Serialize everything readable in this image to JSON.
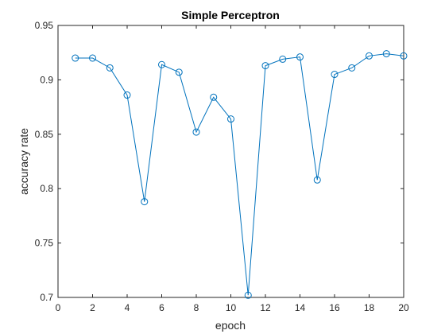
{
  "chart_data": {
    "type": "line",
    "title": "Simple Perceptron",
    "xlabel": "epoch",
    "ylabel": "accuracy rate",
    "xlim": [
      0,
      20
    ],
    "ylim": [
      0.7,
      0.95
    ],
    "xticks": [
      0,
      2,
      4,
      6,
      8,
      10,
      12,
      14,
      16,
      18,
      20
    ],
    "xtick_labels": [
      "0",
      "2",
      "4",
      "6",
      "8",
      "10",
      "12",
      "14",
      "16",
      "18",
      "20"
    ],
    "yticks": [
      0.7,
      0.75,
      0.8,
      0.85,
      0.9,
      0.95
    ],
    "ytick_labels": [
      "0.7",
      "0.75",
      "0.8",
      "0.85",
      "0.9",
      "0.95"
    ],
    "grid": false,
    "marker": "circle",
    "line_color": "#0072BD",
    "series": [
      {
        "x": [
          1,
          2,
          3,
          4,
          5,
          6,
          7,
          8,
          9,
          10,
          11,
          12,
          13,
          14,
          15,
          16,
          17,
          18,
          19,
          20
        ],
        "values": [
          0.92,
          0.92,
          0.911,
          0.886,
          0.788,
          0.914,
          0.907,
          0.852,
          0.884,
          0.864,
          0.702,
          0.913,
          0.919,
          0.921,
          0.808,
          0.905,
          0.911,
          0.922,
          0.924,
          0.922
        ]
      }
    ]
  }
}
